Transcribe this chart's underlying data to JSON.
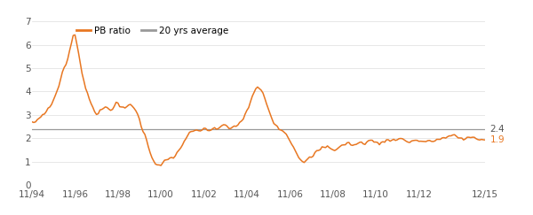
{
  "average_value": 2.4,
  "line_color": "#E87722",
  "avg_line_color": "#999999",
  "background_color": "#ffffff",
  "ylim": [
    0,
    7
  ],
  "yticks": [
    0,
    1,
    2,
    3,
    4,
    5,
    6,
    7
  ],
  "legend_pb_label": "PB ratio",
  "legend_avg_label": "20 yrs average",
  "average_label": "2.4",
  "last_value_label": "1.9",
  "xtick_labels": [
    "11/94",
    "11/96",
    "11/98",
    "11/00",
    "11/02",
    "11/04",
    "11/06",
    "11/08",
    "11/10",
    "11/12",
    "12/15"
  ],
  "pb_data": [
    2.6,
    2.7,
    2.8,
    2.9,
    3.0,
    3.1,
    3.2,
    3.3,
    3.5,
    3.7,
    4.0,
    4.3,
    4.7,
    5.0,
    5.2,
    5.5,
    6.0,
    6.5,
    6.3,
    5.8,
    5.2,
    4.6,
    4.2,
    3.9,
    3.6,
    3.4,
    3.2,
    3.0,
    3.1,
    3.2,
    3.3,
    3.35,
    3.2,
    3.3,
    3.4,
    3.5,
    3.4,
    3.3,
    3.25,
    3.3,
    3.4,
    3.5,
    3.4,
    3.2,
    3.0,
    2.7,
    2.4,
    2.1,
    1.8,
    1.5,
    1.2,
    1.0,
    0.85,
    0.8,
    0.85,
    0.95,
    1.05,
    1.1,
    1.15,
    1.2,
    1.3,
    1.4,
    1.6,
    1.8,
    2.0,
    2.1,
    2.2,
    2.25,
    2.3,
    2.35,
    2.3,
    2.4,
    2.35,
    2.3,
    2.35,
    2.4,
    2.45,
    2.4,
    2.45,
    2.5,
    2.55,
    2.5,
    2.45,
    2.4,
    2.45,
    2.5,
    2.6,
    2.7,
    2.8,
    3.0,
    3.2,
    3.5,
    3.8,
    4.0,
    4.2,
    4.1,
    4.0,
    3.8,
    3.5,
    3.2,
    2.9,
    2.7,
    2.6,
    2.5,
    2.4,
    2.3,
    2.2,
    2.1,
    1.9,
    1.7,
    1.5,
    1.3,
    1.15,
    1.05,
    1.0,
    1.05,
    1.1,
    1.2,
    1.3,
    1.4,
    1.5,
    1.55,
    1.6,
    1.65,
    1.6,
    1.55,
    1.5,
    1.55,
    1.6,
    1.65,
    1.7,
    1.75,
    1.8,
    1.75,
    1.7,
    1.72,
    1.75,
    1.78,
    1.8,
    1.82,
    1.85,
    1.9,
    1.88,
    1.85,
    1.82,
    1.8,
    1.82,
    1.85,
    1.88,
    1.9,
    1.92,
    1.95,
    2.0,
    1.98,
    1.96,
    1.95,
    1.9,
    1.88,
    1.85,
    1.88,
    1.9,
    1.92,
    1.9,
    1.88,
    1.85,
    1.82,
    1.85,
    1.88,
    1.9,
    1.92,
    1.95,
    1.98,
    2.0,
    2.02,
    2.05,
    2.08,
    2.1,
    2.08,
    2.05,
    2.02,
    2.0,
    1.98,
    2.0,
    2.02,
    2.05,
    2.02,
    2.0,
    1.98,
    1.96,
    1.95,
    1.9
  ]
}
